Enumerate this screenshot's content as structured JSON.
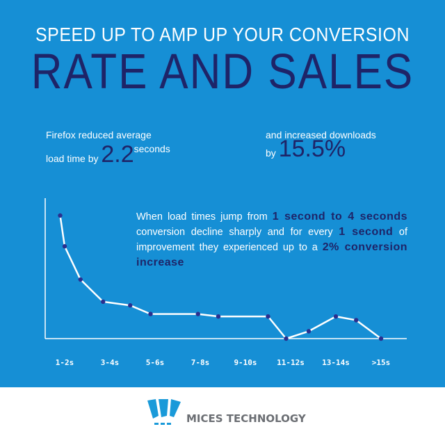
{
  "header": {
    "line1": "SPEED UP TO AMP UP YOUR CONVERSION",
    "line2": "RATE AND SALES"
  },
  "stats": [
    {
      "text_a": "Firefox reduced average",
      "text_b": "load time by",
      "value": "2.2",
      "unit": "seconds"
    },
    {
      "text_a": "and increased downloads",
      "text_b": "by",
      "value": "15.5%"
    }
  ],
  "note": {
    "p1": "When load times jump from",
    "h1": "1 second to 4 seconds",
    "p2": "conversion decline sharply and for every",
    "h2": "1 second",
    "p3": "of improvement they experienced up to a",
    "h3": "2% conversion increase"
  },
  "colors": {
    "background": "#168fd5",
    "accent": "#1e2468",
    "line": "#ffffff",
    "marker": "#2a2f8f"
  },
  "chart_data": {
    "type": "line",
    "title": "",
    "xlabel": "",
    "ylabel": "",
    "x_tick_labels": [
      "1-2s",
      "3-4s",
      "5-6s",
      "7-8s",
      "9-10s",
      "11-12s",
      "13-14s",
      ">15s"
    ],
    "x_tick_positions": [
      1.5,
      3.5,
      5.5,
      7.5,
      9.5,
      11.5,
      13.5,
      15.5
    ],
    "x": [
      1.3,
      1.5,
      2.2,
      3.2,
      4.4,
      5.3,
      7.4,
      8.3,
      10.5,
      11.3,
      12.3,
      13.5,
      14.4,
      15.5
    ],
    "y": [
      100,
      75,
      48,
      30,
      27,
      20,
      20,
      18,
      18,
      0,
      6,
      18,
      15,
      0
    ],
    "xlim": [
      1,
      17
    ],
    "ylim": [
      0,
      105
    ],
    "grid": false,
    "legend": "none"
  },
  "footer": {
    "brand": "MICES TECHNOLOGY"
  }
}
